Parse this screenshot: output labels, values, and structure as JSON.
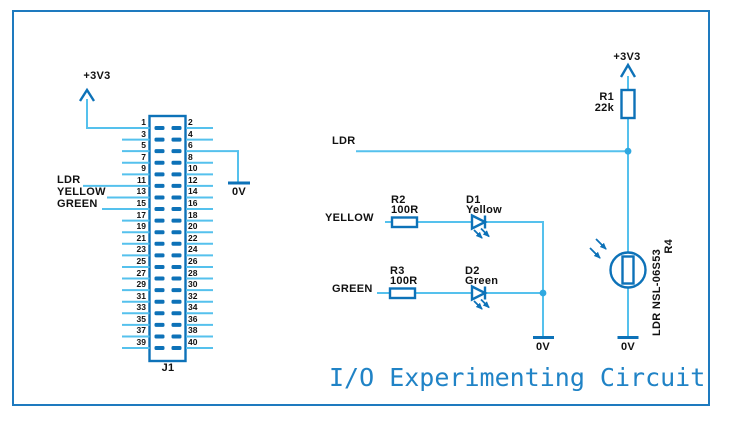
{
  "title": "I/O Experimenting Circuit",
  "power": {
    "rail": "+3V3",
    "ground": "0V"
  },
  "nets": {
    "ldr": "LDR",
    "yellow": "YELLOW",
    "green": "GREEN"
  },
  "connector": {
    "designator": "J1",
    "pin_count": 40,
    "odd_pins": [
      1,
      3,
      5,
      7,
      9,
      11,
      13,
      15,
      17,
      19,
      21,
      23,
      25,
      27,
      29,
      31,
      33,
      35,
      37,
      39
    ],
    "even_pins": [
      2,
      4,
      6,
      8,
      10,
      12,
      14,
      16,
      18,
      20,
      22,
      24,
      26,
      28,
      30,
      32,
      34,
      36,
      38,
      40
    ]
  },
  "components": {
    "r1": {
      "ref": "R1",
      "value": "22k"
    },
    "r2": {
      "ref": "R2",
      "value": "100R"
    },
    "r3": {
      "ref": "R3",
      "value": "100R"
    },
    "d1": {
      "ref": "D1",
      "value": "Yellow"
    },
    "d2": {
      "ref": "D2",
      "value": "Green"
    },
    "r4": {
      "ref": "R4",
      "value": "LDR NSL-06S53"
    }
  },
  "colors": {
    "wire": "#55c1ed",
    "component": "#0d72b8",
    "junction": "#2fa8e0",
    "frame": "#1e7abf",
    "title": "#2083c6",
    "text": "#111111"
  }
}
